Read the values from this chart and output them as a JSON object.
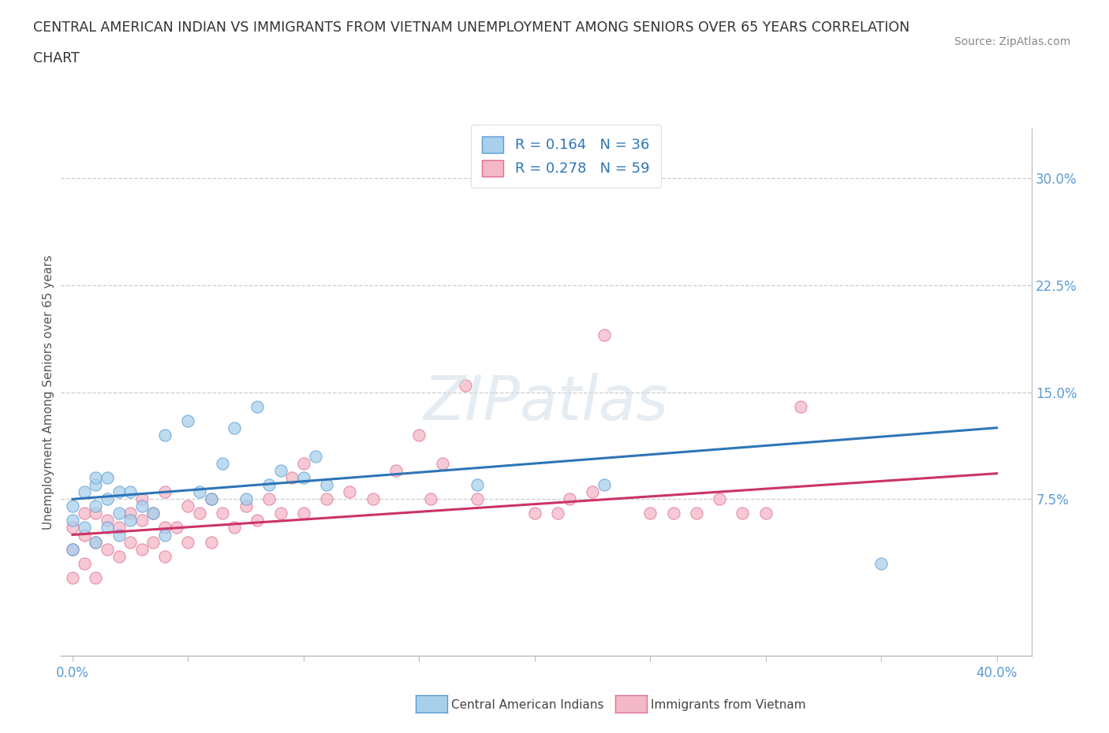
{
  "title_line1": "CENTRAL AMERICAN INDIAN VS IMMIGRANTS FROM VIETNAM UNEMPLOYMENT AMONG SENIORS OVER 65 YEARS CORRELATION",
  "title_line2": "CHART",
  "source_text": "Source: ZipAtlas.com",
  "ylabel": "Unemployment Among Seniors over 65 years",
  "xlim": [
    -0.005,
    0.415
  ],
  "ylim": [
    -0.035,
    0.335
  ],
  "xticks": [
    0.0,
    0.05,
    0.1,
    0.15,
    0.2,
    0.25,
    0.3,
    0.35,
    0.4
  ],
  "ytick_labels_right": [
    "7.5%",
    "15.0%",
    "22.5%",
    "30.0%"
  ],
  "ytick_values_right": [
    0.075,
    0.15,
    0.225,
    0.3
  ],
  "blue_color": "#a8d0eb",
  "pink_color": "#f4b8c8",
  "blue_edge_color": "#5b9bd5",
  "pink_edge_color": "#e07090",
  "blue_line_color": "#2e75b6",
  "pink_line_color": "#cc3366",
  "R_blue": 0.164,
  "N_blue": 36,
  "R_pink": 0.278,
  "N_pink": 59,
  "legend_label_blue": "Central American Indians",
  "legend_label_pink": "Immigrants from Vietnam",
  "blue_scatter_x": [
    0.0,
    0.0,
    0.0,
    0.005,
    0.005,
    0.01,
    0.01,
    0.01,
    0.01,
    0.015,
    0.015,
    0.015,
    0.02,
    0.02,
    0.02,
    0.025,
    0.025,
    0.03,
    0.035,
    0.04,
    0.04,
    0.05,
    0.055,
    0.06,
    0.065,
    0.07,
    0.075,
    0.08,
    0.085,
    0.09,
    0.1,
    0.105,
    0.11,
    0.175,
    0.23,
    0.35
  ],
  "blue_scatter_y": [
    0.04,
    0.06,
    0.07,
    0.055,
    0.08,
    0.045,
    0.07,
    0.085,
    0.09,
    0.055,
    0.075,
    0.09,
    0.05,
    0.065,
    0.08,
    0.06,
    0.08,
    0.07,
    0.065,
    0.05,
    0.12,
    0.13,
    0.08,
    0.075,
    0.1,
    0.125,
    0.075,
    0.14,
    0.085,
    0.095,
    0.09,
    0.105,
    0.085,
    0.085,
    0.085,
    0.03
  ],
  "pink_scatter_x": [
    0.0,
    0.0,
    0.0,
    0.005,
    0.005,
    0.005,
    0.01,
    0.01,
    0.01,
    0.015,
    0.015,
    0.02,
    0.02,
    0.025,
    0.025,
    0.03,
    0.03,
    0.03,
    0.035,
    0.035,
    0.04,
    0.04,
    0.04,
    0.045,
    0.05,
    0.05,
    0.055,
    0.06,
    0.06,
    0.065,
    0.07,
    0.075,
    0.08,
    0.085,
    0.09,
    0.095,
    0.1,
    0.1,
    0.11,
    0.12,
    0.13,
    0.14,
    0.15,
    0.155,
    0.16,
    0.17,
    0.175,
    0.2,
    0.21,
    0.215,
    0.225,
    0.23,
    0.25,
    0.26,
    0.27,
    0.28,
    0.29,
    0.3,
    0.315
  ],
  "pink_scatter_y": [
    0.02,
    0.04,
    0.055,
    0.03,
    0.05,
    0.065,
    0.02,
    0.045,
    0.065,
    0.04,
    0.06,
    0.035,
    0.055,
    0.045,
    0.065,
    0.04,
    0.06,
    0.075,
    0.045,
    0.065,
    0.035,
    0.055,
    0.08,
    0.055,
    0.045,
    0.07,
    0.065,
    0.045,
    0.075,
    0.065,
    0.055,
    0.07,
    0.06,
    0.075,
    0.065,
    0.09,
    0.065,
    0.1,
    0.075,
    0.08,
    0.075,
    0.095,
    0.12,
    0.075,
    0.1,
    0.155,
    0.075,
    0.065,
    0.065,
    0.075,
    0.08,
    0.19,
    0.065,
    0.065,
    0.065,
    0.075,
    0.065,
    0.065,
    0.14
  ],
  "blue_trend_y_start": 0.075,
  "blue_trend_y_end": 0.125,
  "pink_trend_y_start": 0.05,
  "pink_trend_y_end": 0.093
}
